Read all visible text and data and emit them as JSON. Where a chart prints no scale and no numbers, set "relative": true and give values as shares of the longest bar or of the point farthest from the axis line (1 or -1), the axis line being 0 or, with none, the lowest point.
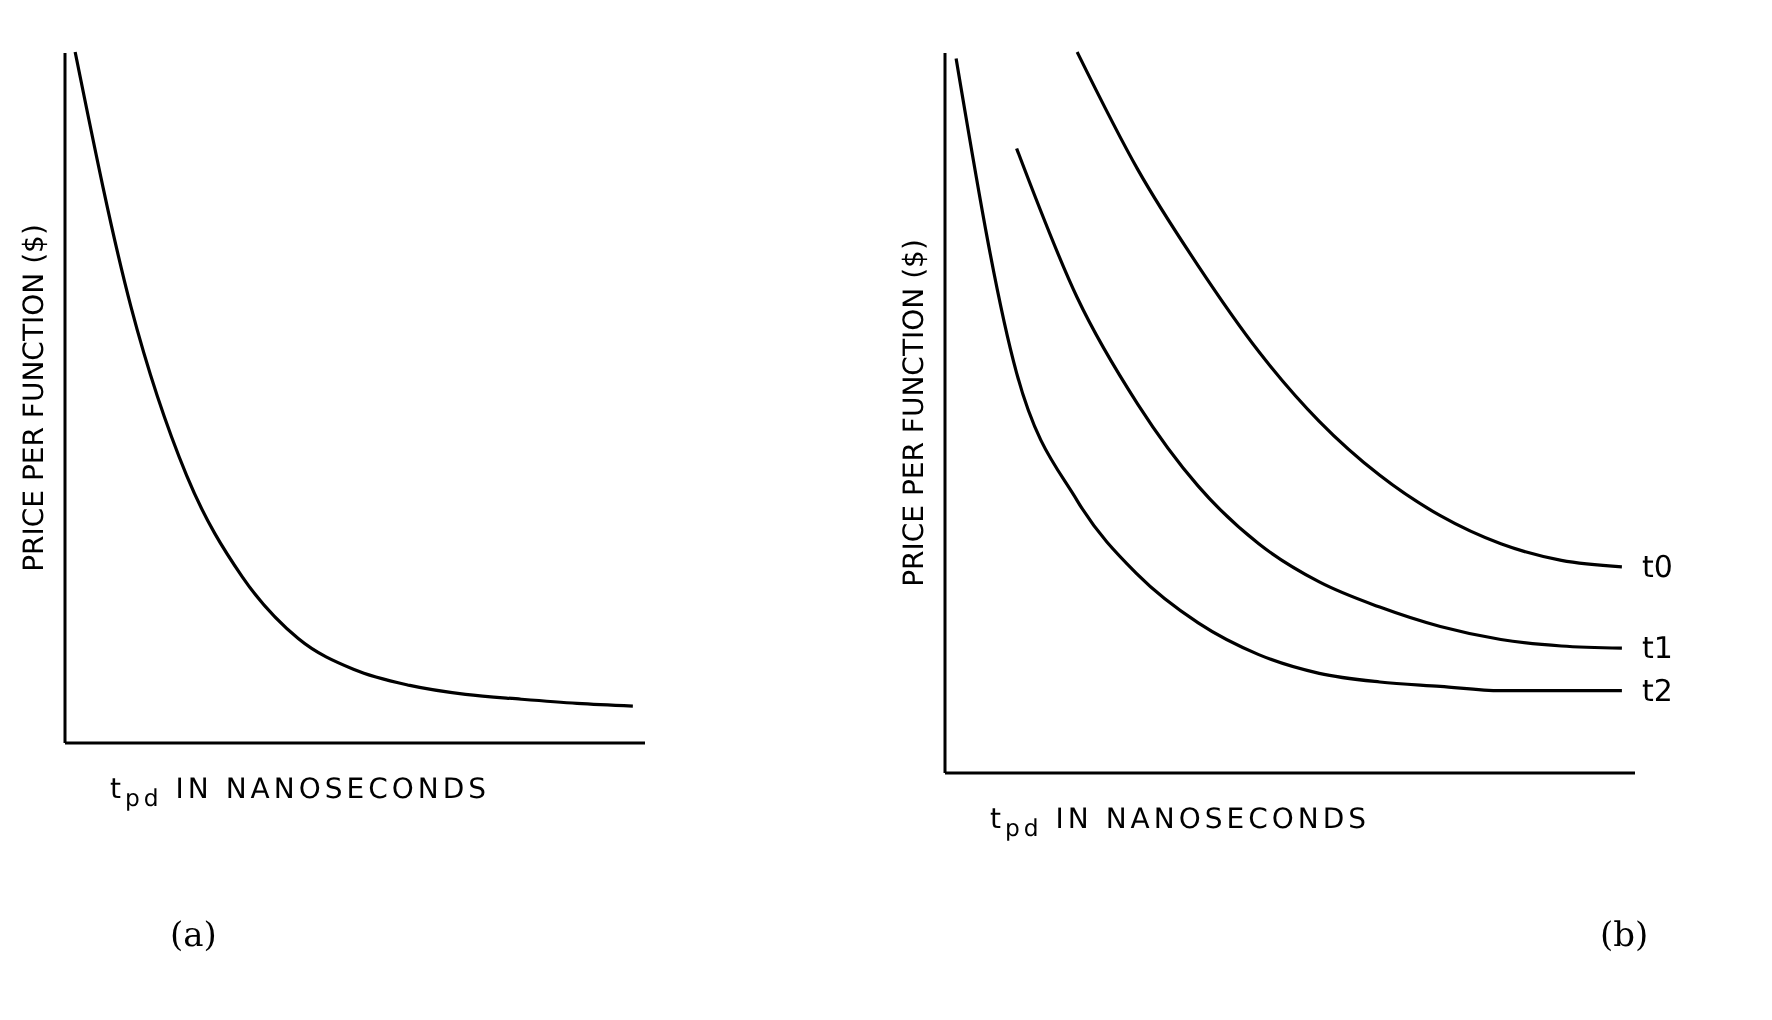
{
  "chart_data": [
    {
      "type": "line",
      "relative": true,
      "tick_labels": false,
      "ylabel": "PRICE PER FUNCTION ($)",
      "xlabel": "t$_{pd}$ IN NANOSECONDS",
      "annotations": [
        "(a)"
      ],
      "categories": [
        null,
        null,
        null,
        null,
        null,
        null,
        null,
        null,
        null,
        null,
        null
      ],
      "series": [
        {
          "color": "#000000",
          "values": [
            1,
            0.631,
            0.386,
            0.239,
            0.15,
            0.105,
            0.082,
            0.069,
            0.062,
            0.056,
            0.052
          ]
        }
      ]
    },
    {
      "type": "line",
      "relative": true,
      "tick_labels": false,
      "ylabel": "PRICE PER FUNCTION ($)",
      "xlabel": "t$_{pd}$ IN NANOSECONDS",
      "annotations": [
        "(b)"
      ],
      "categories": [
        null,
        null,
        null,
        null,
        null,
        null,
        null,
        null,
        null,
        null,
        null,
        null
      ],
      "series": [
        {
          "name": "t0",
          "color": "#000000",
          "values": [
            null,
            null,
            1,
            0.837,
            0.703,
            0.584,
            0.487,
            0.412,
            0.356,
            0.317,
            0.294,
            0.285
          ]
        },
        {
          "name": "t1",
          "color": "#000000",
          "values": [
            null,
            0.866,
            0.659,
            0.511,
            0.397,
            0.317,
            0.264,
            0.229,
            0.202,
            0.184,
            0.175,
            0.172
          ]
        },
        {
          "name": "t2",
          "color": "#000000",
          "values": [
            0.991,
            0.554,
            0.377,
            0.274,
            0.207,
            0.163,
            0.137,
            0.125,
            0.119,
            0.113,
            0.113,
            0.113
          ]
        }
      ]
    }
  ]
}
